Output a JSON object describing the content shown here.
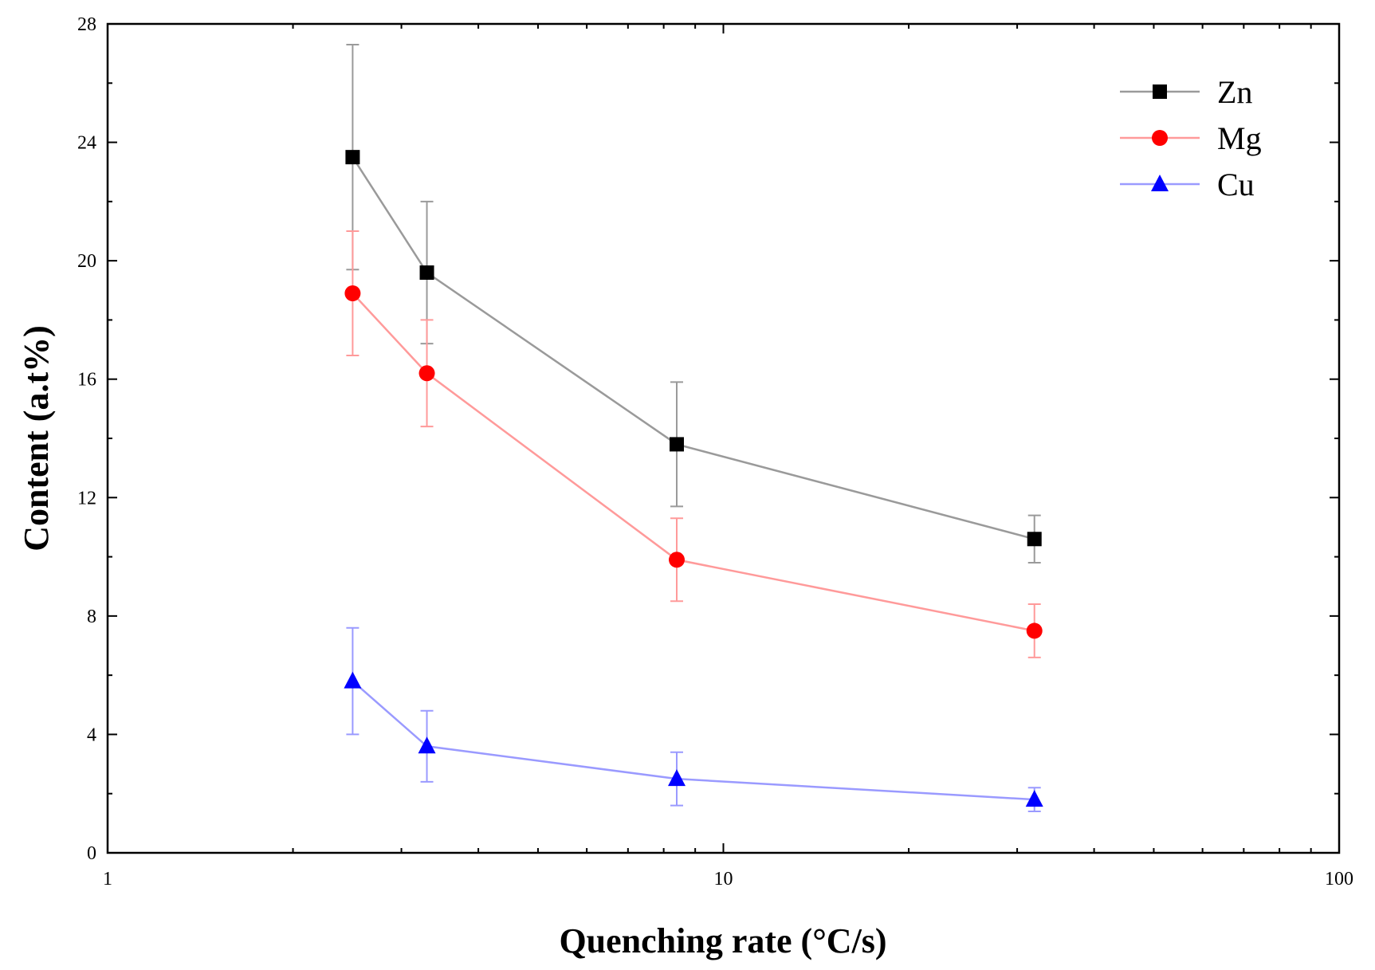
{
  "chart_data": {
    "type": "line",
    "xscale": "log",
    "xlabel": "Quenching rate (°C/s)",
    "ylabel": "Content (a.t%)",
    "xlim": [
      1,
      100
    ],
    "ylim": [
      0,
      28
    ],
    "xticks": [
      1,
      10,
      100
    ],
    "xtick_labels": [
      "1",
      "10",
      "100"
    ],
    "yticks": [
      0,
      4,
      8,
      12,
      16,
      20,
      24,
      28
    ],
    "ytick_labels": [
      "0",
      "4",
      "8",
      "12",
      "16",
      "20",
      "24",
      "28"
    ],
    "legend_position": "top-right",
    "x": [
      2.5,
      3.3,
      8.4,
      32
    ],
    "series": [
      {
        "name": "Zn",
        "marker": "square",
        "color": "#000000",
        "line_color": "#9a9a9a",
        "values": [
          23.5,
          19.6,
          13.8,
          10.6
        ],
        "errors": [
          3.8,
          2.4,
          2.1,
          0.8
        ]
      },
      {
        "name": "Mg",
        "marker": "circle",
        "color": "#ff0000",
        "line_color": "#ff9a9a",
        "values": [
          18.9,
          16.2,
          9.9,
          7.5
        ],
        "errors": [
          2.1,
          1.8,
          1.4,
          0.9
        ]
      },
      {
        "name": "Cu",
        "marker": "triangle",
        "color": "#0000ff",
        "line_color": "#9a9aff",
        "values": [
          5.8,
          3.6,
          2.5,
          1.8
        ],
        "errors": [
          1.8,
          1.2,
          0.9,
          0.4
        ]
      }
    ]
  }
}
